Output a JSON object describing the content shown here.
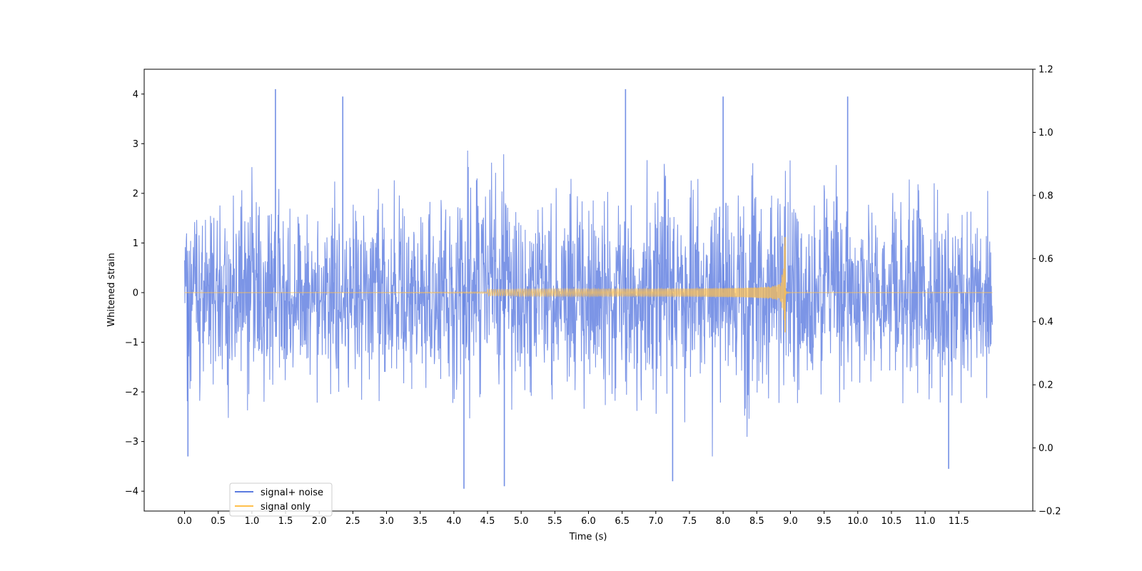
{
  "chart_data": {
    "type": "line",
    "title": "",
    "xlabel": "Time (s)",
    "ylabel": "Whitened strain",
    "xlim": [
      -0.6,
      12.6
    ],
    "ylim": [
      -4.4,
      4.5
    ],
    "y2lim": [
      -0.2,
      1.2
    ],
    "x_ticks": [
      0.0,
      0.5,
      1.0,
      1.5,
      2.0,
      2.5,
      3.0,
      3.5,
      4.0,
      4.5,
      5.0,
      5.5,
      6.0,
      6.5,
      7.0,
      7.5,
      8.0,
      8.5,
      9.0,
      9.5,
      10.0,
      10.5,
      11.0,
      11.5
    ],
    "x_tick_labels": [
      "0.0",
      "0.5",
      "1.0",
      "1.5",
      "2.0",
      "2.5",
      "3.0",
      "3.5",
      "4.0",
      "4.5",
      "5.0",
      "5.5",
      "6.0",
      "6.5",
      "7.0",
      "7.5",
      "8.0",
      "8.5",
      "9.0",
      "9.5",
      "10.0",
      "10.5",
      "11.0",
      "11.5"
    ],
    "y_ticks": [
      -4,
      -3,
      -2,
      -1,
      0,
      1,
      2,
      3,
      4
    ],
    "y_tick_labels": [
      "−4",
      "−3",
      "−2",
      "−1",
      "0",
      "1",
      "2",
      "3",
      "4"
    ],
    "y2_ticks": [
      -0.2,
      0.0,
      0.2,
      0.4,
      0.6,
      0.8,
      1.0,
      1.2
    ],
    "y2_tick_labels": [
      "−0.2",
      "0.0",
      "0.2",
      "0.4",
      "0.6",
      "0.8",
      "1.0",
      "1.2"
    ],
    "grid": false,
    "legend_position": "lower-left",
    "series": [
      {
        "name": "signal+ noise",
        "color": "#5b7be0",
        "kind": "noise",
        "x_range": [
          0.0,
          12.0
        ],
        "typical_envelope": [
          -2.0,
          2.2
        ],
        "peaks": [
          {
            "x": 0.05,
            "y": -3.3
          },
          {
            "x": 1.35,
            "y": 4.1
          },
          {
            "x": 2.35,
            "y": 3.95
          },
          {
            "x": 4.15,
            "y": -3.95
          },
          {
            "x": 4.75,
            "y": -3.9
          },
          {
            "x": 6.55,
            "y": 4.1
          },
          {
            "x": 7.25,
            "y": -3.8
          },
          {
            "x": 8.0,
            "y": 3.95
          },
          {
            "x": 9.85,
            "y": 3.95
          },
          {
            "x": 11.35,
            "y": -3.55
          }
        ]
      },
      {
        "name": "signal only",
        "color": "#ffc04d",
        "kind": "chirp",
        "x_range": [
          0.0,
          12.0
        ],
        "merger_time": 8.92,
        "max_positive": 1.12,
        "max_negative": -0.8
      }
    ]
  }
}
